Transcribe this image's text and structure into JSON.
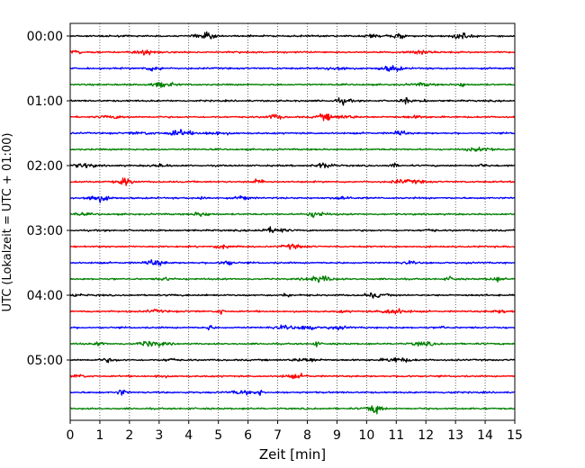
{
  "chart_data": {
    "type": "line",
    "title": "",
    "xlabel": "Zeit  [min]",
    "ylabel": "UTC (Lokalzeit = UTC + 01:00)",
    "xlim": [
      0,
      15
    ],
    "xticks": [
      "0",
      "1",
      "2",
      "3",
      "4",
      "5",
      "6",
      "7",
      "8",
      "9",
      "10",
      "11",
      "12",
      "13",
      "14",
      "15"
    ],
    "ytick_labels": [
      "00:00",
      "01:00",
      "02:00",
      "03:00",
      "04:00",
      "05:00"
    ],
    "traces_per_hour": 4,
    "trace_count": 24,
    "trace_minutes": 15,
    "trace_colors": [
      "#000000",
      "#ff0000",
      "#0000ff",
      "#008000"
    ],
    "grid": {
      "x": "dotted vertical lines at each minute",
      "y": false
    },
    "series": [
      {
        "values": [
          0,
          0,
          0,
          0,
          0,
          0,
          0,
          0,
          0,
          0,
          0,
          0,
          0,
          0,
          0,
          0
        ]
      }
    ]
  }
}
